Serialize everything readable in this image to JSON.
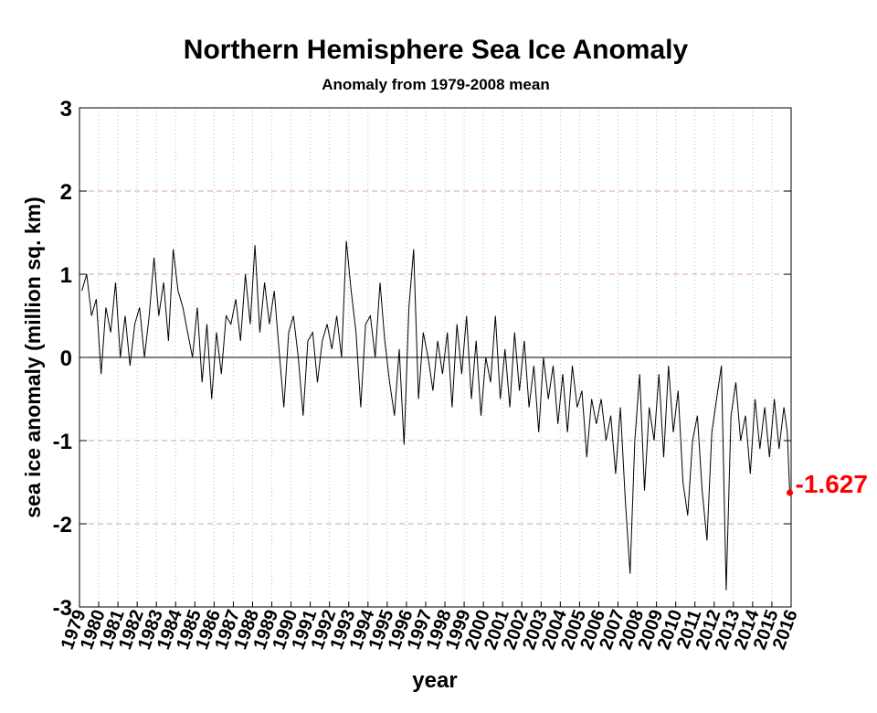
{
  "chart_data": {
    "type": "line",
    "title": "Northern Hemisphere Sea Ice Anomaly",
    "subtitle": "Anomaly from 1979-2008 mean",
    "x_label": "year",
    "y_label": "sea ice anomaly (million sq. km)",
    "color": "#000000",
    "annotation_color": "#ff0000",
    "x": [
      1979.125,
      1979.375,
      1979.625,
      1979.875,
      1980.125,
      1980.375,
      1980.625,
      1980.875,
      1981.125,
      1981.375,
      1981.625,
      1981.875,
      1982.125,
      1982.375,
      1982.625,
      1982.875,
      1983.125,
      1983.375,
      1983.625,
      1983.875,
      1984.125,
      1984.375,
      1984.625,
      1984.875,
      1985.125,
      1985.375,
      1985.625,
      1985.875,
      1986.125,
      1986.375,
      1986.625,
      1986.875,
      1987.125,
      1987.375,
      1987.625,
      1987.875,
      1988.125,
      1988.375,
      1988.625,
      1988.875,
      1989.125,
      1989.375,
      1989.625,
      1989.875,
      1990.125,
      1990.375,
      1990.625,
      1990.875,
      1991.125,
      1991.375,
      1991.625,
      1991.875,
      1992.125,
      1992.375,
      1992.625,
      1992.875,
      1993.125,
      1993.375,
      1993.625,
      1993.875,
      1994.125,
      1994.375,
      1994.625,
      1994.875,
      1995.125,
      1995.375,
      1995.625,
      1995.875,
      1996.125,
      1996.375,
      1996.625,
      1996.875,
      1997.125,
      1997.375,
      1997.625,
      1997.875,
      1998.125,
      1998.375,
      1998.625,
      1998.875,
      1999.125,
      1999.375,
      1999.625,
      1999.875,
      2000.125,
      2000.375,
      2000.625,
      2000.875,
      2001.125,
      2001.375,
      2001.625,
      2001.875,
      2002.125,
      2002.375,
      2002.625,
      2002.875,
      2003.125,
      2003.375,
      2003.625,
      2003.875,
      2004.125,
      2004.375,
      2004.625,
      2004.875,
      2005.125,
      2005.375,
      2005.625,
      2005.875,
      2006.125,
      2006.375,
      2006.625,
      2006.875,
      2007.125,
      2007.375,
      2007.625,
      2007.875,
      2008.125,
      2008.375,
      2008.625,
      2008.875,
      2009.125,
      2009.375,
      2009.625,
      2009.875,
      2010.125,
      2010.375,
      2010.625,
      2010.875,
      2011.125,
      2011.375,
      2011.625,
      2011.875,
      2012.125,
      2012.375,
      2012.625,
      2012.875,
      2013.125,
      2013.375,
      2013.625,
      2013.875,
      2014.125,
      2014.375,
      2014.625,
      2014.875,
      2015.125,
      2015.375,
      2015.625,
      2015.8,
      2015.93
    ],
    "values": [
      0.8,
      1.0,
      0.5,
      0.7,
      -0.2,
      0.6,
      0.3,
      0.9,
      0.0,
      0.5,
      -0.1,
      0.4,
      0.6,
      0.0,
      0.5,
      1.2,
      0.5,
      0.9,
      0.2,
      1.3,
      0.8,
      0.6,
      0.3,
      0.0,
      0.6,
      -0.3,
      0.4,
      -0.5,
      0.3,
      -0.2,
      0.5,
      0.4,
      0.7,
      0.2,
      1.0,
      0.4,
      1.35,
      0.3,
      0.9,
      0.4,
      0.8,
      0.1,
      -0.6,
      0.3,
      0.5,
      0.0,
      -0.7,
      0.2,
      0.3,
      -0.3,
      0.2,
      0.4,
      0.1,
      0.5,
      0.0,
      1.4,
      0.8,
      0.3,
      -0.6,
      0.4,
      0.5,
      0.0,
      0.9,
      0.2,
      -0.3,
      -0.7,
      0.1,
      -1.05,
      0.6,
      1.3,
      -0.5,
      0.3,
      0.0,
      -0.4,
      0.2,
      -0.2,
      0.3,
      -0.6,
      0.4,
      -0.2,
      0.5,
      -0.5,
      0.2,
      -0.7,
      0.0,
      -0.3,
      0.5,
      -0.5,
      0.1,
      -0.6,
      0.3,
      -0.4,
      0.2,
      -0.6,
      -0.1,
      -0.9,
      0.0,
      -0.5,
      -0.1,
      -0.8,
      -0.2,
      -0.9,
      -0.1,
      -0.6,
      -0.4,
      -1.2,
      -0.5,
      -0.8,
      -0.5,
      -1.0,
      -0.7,
      -1.4,
      -0.6,
      -1.7,
      -2.6,
      -1.0,
      -0.2,
      -1.6,
      -0.6,
      -1.0,
      -0.2,
      -1.2,
      -0.1,
      -0.9,
      -0.4,
      -1.5,
      -1.9,
      -1.0,
      -0.7,
      -1.6,
      -2.2,
      -0.9,
      -0.5,
      -0.1,
      -2.8,
      -0.7,
      -0.3,
      -1.0,
      -0.7,
      -1.4,
      -0.5,
      -1.1,
      -0.6,
      -1.2,
      -0.5,
      -1.1,
      -0.6,
      -0.9,
      -1.627
    ],
    "xlim": [
      1979,
      2016
    ],
    "xticks": [
      1979,
      1980,
      1981,
      1982,
      1983,
      1984,
      1985,
      1986,
      1987,
      1988,
      1989,
      1990,
      1991,
      1992,
      1993,
      1994,
      1995,
      1996,
      1997,
      1998,
      1999,
      2000,
      2001,
      2002,
      2003,
      2004,
      2005,
      2006,
      2007,
      2008,
      2009,
      2010,
      2011,
      2012,
      2013,
      2014,
      2015,
      2016
    ],
    "ylim": [
      -3,
      3
    ],
    "yticks": [
      -3,
      -2,
      -1,
      0,
      1,
      2,
      3
    ],
    "grid": true
  }
}
